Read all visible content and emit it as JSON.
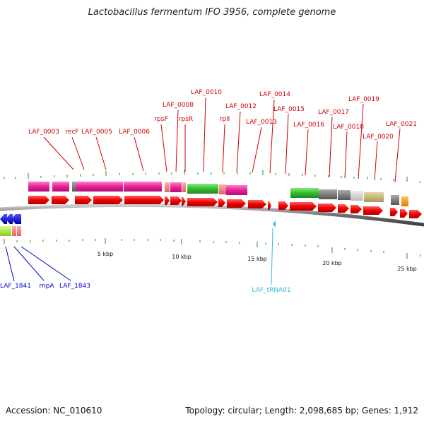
{
  "title": "Lactobacillus fermentum IFO 3956, complete genome",
  "accession_label": "Accession: NC_010610",
  "topology_label": "Topology: circular; Length: 2,098,685 bp; Genes: 1,912",
  "scale_labels": [
    "5 kbp",
    "10 kbp",
    "15 kbp",
    "20 kbp",
    "25 kbp"
  ],
  "gene_labels_top": [
    "LAF_0003",
    "recF",
    "LAF_0005",
    "LAF_0006",
    "rpsF",
    "LAF_0008",
    "rpsR",
    "LAF_0010",
    "rplI",
    "LAF_0012",
    "LAF_0013",
    "LAF_0014",
    "LAF_0015",
    "LAF_0016",
    "LAF_0017",
    "LAF_0018",
    "LAF_0019",
    "LAF_0020",
    "LAF_0021"
  ],
  "gene_labels_bottom": [
    "LAF_1841",
    "rnpA",
    "LAF_1843"
  ],
  "trna_label": "LAF_tRNA01",
  "colors": {
    "forward_gene": "#ff0000",
    "reverse_gene": "#0000ff",
    "label_forward": "#cc0000",
    "label_reverse": "#0000cc",
    "label_trna": "#33bbdd",
    "backbone": "#808080",
    "tick": "#228822"
  }
}
